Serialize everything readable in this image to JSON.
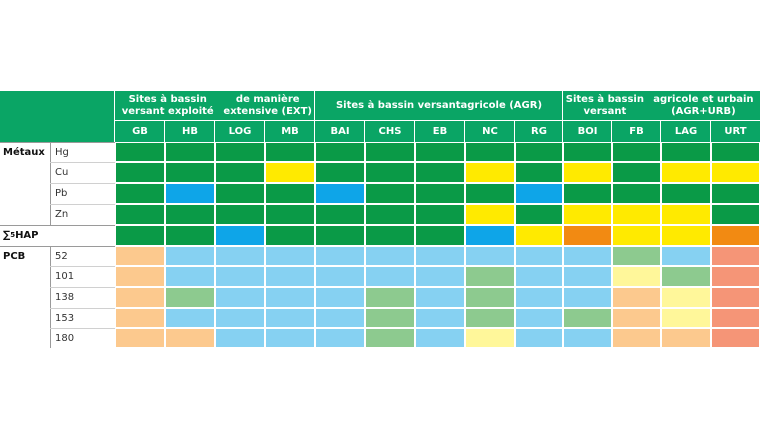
{
  "colors": {
    "header_green": "#0aa565",
    "dark_green": "#0a9a47",
    "yellow": "#ffea00",
    "blue": "#0ea5e8",
    "orange": "#f28a12",
    "light_blue": "#86d1f2",
    "light_green": "#8dca8f",
    "light_orange": "#fcc98e",
    "light_yellow": "#fff79a",
    "salmon": "#f59577"
  },
  "groups": [
    {
      "label_lines": [
        "Sites à bassin versant exploité",
        "de manière extensive (EXT)"
      ]
    },
    {
      "label_lines": [
        "Sites à bassin versant",
        "agricole (AGR)"
      ]
    },
    {
      "label_lines": [
        "Sites à bassin versant",
        "agricole et urbain (AGR+URB)"
      ]
    }
  ],
  "sites": [
    "GB",
    "HB",
    "LOG",
    "MB",
    "BAI",
    "CHS",
    "EB",
    "NC",
    "RG",
    "BOI",
    "FB",
    "LAG",
    "URT"
  ],
  "categories": [
    {
      "label": "Métaux",
      "rows": [
        {
          "label": "Hg",
          "cells": [
            "G",
            "G",
            "G",
            "G",
            "G",
            "G",
            "G",
            "G",
            "G",
            "G",
            "G",
            "G",
            "G"
          ]
        },
        {
          "label": "Cu",
          "cells": [
            "G",
            "G",
            "G",
            "Y",
            "G",
            "G",
            "G",
            "Y",
            "G",
            "Y",
            "G",
            "Y",
            "Y"
          ]
        },
        {
          "label": "Pb",
          "cells": [
            "G",
            "B",
            "G",
            "G",
            "B",
            "G",
            "G",
            "G",
            "B",
            "G",
            "G",
            "G",
            "G"
          ]
        },
        {
          "label": "Zn",
          "cells": [
            "G",
            "G",
            "G",
            "G",
            "G",
            "G",
            "G",
            "Y",
            "G",
            "Y",
            "Y",
            "Y",
            "G"
          ]
        }
      ]
    },
    {
      "label_prefix": "∑",
      "label_sub": "5",
      "label_suffix": " HAP",
      "rows": [
        {
          "label": "",
          "cells": [
            "G",
            "G",
            "B",
            "G",
            "G",
            "G",
            "G",
            "B",
            "Y",
            "O",
            "Y",
            "Y",
            "O"
          ]
        }
      ]
    },
    {
      "label": "PCB",
      "rows": [
        {
          "label": "52",
          "cells": [
            "lo",
            "lb",
            "lb",
            "lb",
            "lb",
            "lb",
            "lb",
            "lb",
            "lb",
            "lb",
            "lg",
            "lb",
            "sa"
          ]
        },
        {
          "label": "101",
          "cells": [
            "lo",
            "lb",
            "lb",
            "lb",
            "lb",
            "lb",
            "lb",
            "lg",
            "lb",
            "lb",
            "ly",
            "lg",
            "sa"
          ]
        },
        {
          "label": "138",
          "cells": [
            "lo",
            "lg",
            "lb",
            "lb",
            "lb",
            "lg",
            "lb",
            "lg",
            "lb",
            "lb",
            "lo",
            "ly",
            "sa"
          ]
        },
        {
          "label": "153",
          "cells": [
            "lo",
            "lb",
            "lb",
            "lb",
            "lb",
            "lg",
            "lb",
            "lg",
            "lb",
            "lg",
            "lo",
            "ly",
            "sa"
          ]
        },
        {
          "label": "180",
          "cells": [
            "lo",
            "lo",
            "lb",
            "lb",
            "lb",
            "lg",
            "lb",
            "ly",
            "lb",
            "lb",
            "lo",
            "lo",
            "sa"
          ]
        }
      ]
    }
  ]
}
